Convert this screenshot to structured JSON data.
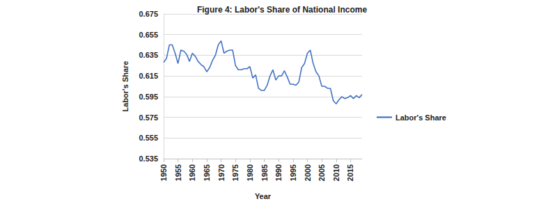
{
  "chart_data": {
    "type": "line",
    "title": "Figure 4: Labor's Share of National Income",
    "x_label": "Year",
    "y_label": "Labor's Share",
    "x": [
      1950,
      1951,
      1952,
      1953,
      1954,
      1955,
      1956,
      1957,
      1958,
      1959,
      1960,
      1961,
      1962,
      1963,
      1964,
      1965,
      1966,
      1967,
      1968,
      1969,
      1970,
      1971,
      1972,
      1973,
      1974,
      1975,
      1976,
      1977,
      1978,
      1979,
      1980,
      1981,
      1982,
      1983,
      1984,
      1985,
      1986,
      1987,
      1988,
      1989,
      1990,
      1991,
      1992,
      1993,
      1994,
      1995,
      1996,
      1997,
      1998,
      1999,
      2000,
      2001,
      2002,
      2003,
      2004,
      2005,
      2006,
      2007,
      2008,
      2009,
      2010,
      2011,
      2012,
      2013,
      2014,
      2015,
      2016,
      2017,
      2018,
      2019
    ],
    "series": [
      {
        "name": "Labor's Share",
        "color": "#4472c4",
        "values": [
          0.628,
          0.632,
          0.645,
          0.645,
          0.637,
          0.627,
          0.64,
          0.639,
          0.636,
          0.629,
          0.637,
          0.634,
          0.629,
          0.626,
          0.624,
          0.619,
          0.623,
          0.63,
          0.635,
          0.645,
          0.649,
          0.637,
          0.639,
          0.64,
          0.64,
          0.625,
          0.621,
          0.621,
          0.622,
          0.622,
          0.624,
          0.613,
          0.616,
          0.603,
          0.601,
          0.601,
          0.606,
          0.615,
          0.621,
          0.611,
          0.615,
          0.615,
          0.62,
          0.614,
          0.607,
          0.607,
          0.606,
          0.609,
          0.623,
          0.627,
          0.637,
          0.64,
          0.627,
          0.619,
          0.615,
          0.605,
          0.605,
          0.603,
          0.603,
          0.591,
          0.588,
          0.592,
          0.595,
          0.593,
          0.594,
          0.596,
          0.593,
          0.596,
          0.594,
          0.597
        ]
      }
    ],
    "xlim": [
      1950,
      2019
    ],
    "xticks": [
      1950,
      1955,
      1960,
      1965,
      1970,
      1975,
      1980,
      1985,
      1990,
      1995,
      2000,
      2005,
      2010,
      2015
    ],
    "ylim": [
      0.535,
      0.675
    ],
    "yticks": [
      0.535,
      0.555,
      0.575,
      0.595,
      0.615,
      0.635,
      0.655,
      0.675
    ],
    "grid": true,
    "legend": "right"
  }
}
